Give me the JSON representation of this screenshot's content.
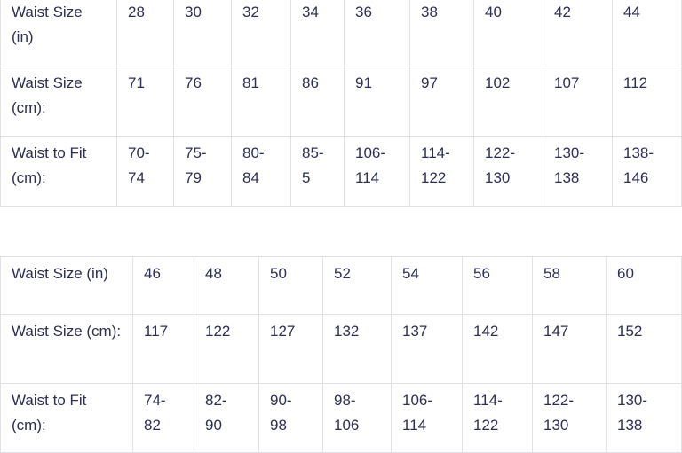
{
  "tables": [
    {
      "rows": [
        {
          "label": "Waist Size (in)",
          "cells": [
            "28",
            "30",
            "32",
            "34",
            "36",
            "38",
            "40",
            "42",
            "44"
          ]
        },
        {
          "label": "Waist Size (cm):",
          "cells": [
            "71",
            "76",
            "81",
            "86",
            "91",
            "97",
            "102",
            "107",
            "112"
          ]
        },
        {
          "label": "Waist to Fit (cm):",
          "cells": [
            "70-74",
            "75-79",
            "80-84",
            "85-5",
            "106-114",
            "114-122",
            "122-130",
            "130-138",
            "138-146"
          ]
        }
      ]
    },
    {
      "rows": [
        {
          "label": "Waist Size (in)",
          "cells": [
            "46",
            "48",
            "50",
            "52",
            "54",
            "56",
            "58",
            "60"
          ]
        },
        {
          "label": "Waist Size (cm):",
          "cells": [
            "117",
            "122",
            "127",
            "132",
            "137",
            "142",
            "147",
            "152"
          ]
        },
        {
          "label": "Waist to Fit (cm):",
          "cells": [
            "74-82",
            "82-90",
            "90-98",
            "98-106",
            "106-114",
            "114-122",
            "122-130",
            "130-138"
          ]
        }
      ]
    }
  ]
}
